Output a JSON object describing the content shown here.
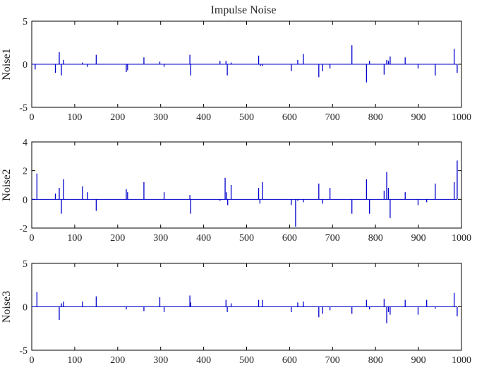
{
  "title": "Impulse Noise",
  "chart_data": [
    {
      "type": "line",
      "title": "Impulse Noise",
      "ylabel": "Noise1",
      "xlabel": "",
      "xlim": [
        0,
        1000
      ],
      "ylim": [
        -5,
        5
      ],
      "xticks": [
        0,
        100,
        200,
        300,
        400,
        500,
        600,
        700,
        800,
        900,
        1000
      ],
      "yticks": [
        -5,
        0,
        5
      ],
      "color": "#0000cc",
      "series": [
        {
          "x": [
            8,
            55,
            64,
            69,
            74,
            118,
            130,
            150,
            220,
            223,
            261,
            298,
            308,
            368,
            370,
            438,
            452,
            455,
            464,
            528,
            532,
            537,
            604,
            619,
            632,
            668,
            677,
            694,
            745,
            779,
            786,
            820,
            826,
            830,
            834,
            869,
            899,
            939,
            983,
            990
          ],
          "y": [
            -0.6,
            -1,
            1.4,
            -1.3,
            0.5,
            0.2,
            -0.3,
            1.1,
            -0.9,
            -0.7,
            0.8,
            0.3,
            -0.3,
            1.1,
            -1.3,
            0.4,
            0.4,
            -1.3,
            0.2,
            1,
            -0.2,
            -0.2,
            -0.8,
            0.5,
            1.2,
            -1.5,
            -0.8,
            -0.5,
            2.2,
            -2.1,
            0.4,
            -1.2,
            0.5,
            0.4,
            0.9,
            0.8,
            -0.5,
            -1.3,
            1.8,
            -1
          ]
        }
      ]
    },
    {
      "type": "line",
      "title": "",
      "ylabel": "Noise2",
      "xlabel": "",
      "xlim": [
        0,
        1000
      ],
      "ylim": [
        -2,
        4
      ],
      "xticks": [
        0,
        100,
        200,
        300,
        400,
        500,
        600,
        700,
        800,
        900,
        1000
      ],
      "yticks": [
        -2,
        0,
        2,
        4
      ],
      "color": "#0000cc",
      "series": [
        {
          "x": [
            12,
            55,
            64,
            69,
            74,
            118,
            130,
            150,
            220,
            223,
            261,
            308,
            368,
            370,
            438,
            450,
            453,
            456,
            464,
            528,
            531,
            537,
            604,
            614,
            619,
            632,
            668,
            677,
            694,
            745,
            779,
            786,
            820,
            826,
            830,
            834,
            869,
            899,
            919,
            939,
            983,
            990
          ],
          "y": [
            1.8,
            0.4,
            0.8,
            -1,
            1.4,
            0.9,
            0.5,
            -0.8,
            0.7,
            0.5,
            1.2,
            0.5,
            0.3,
            -1,
            -0.1,
            1.5,
            0.5,
            -0.4,
            1,
            0.8,
            -0.3,
            1.2,
            -0.4,
            -1.9,
            -0.1,
            -0.2,
            1.1,
            -0.3,
            0.8,
            -1,
            1.4,
            -1,
            0.6,
            1.9,
            0.8,
            -1.3,
            0.5,
            -0.4,
            -0.2,
            1.1,
            1.2,
            2.7
          ]
        }
      ]
    },
    {
      "type": "line",
      "title": "",
      "ylabel": "Noise3",
      "xlabel": "",
      "xlim": [
        0,
        1000
      ],
      "ylim": [
        -5,
        5
      ],
      "xticks": [
        0,
        100,
        200,
        300,
        400,
        500,
        600,
        700,
        800,
        900,
        1000
      ],
      "yticks": [
        -5,
        0,
        5
      ],
      "color": "#0000cc",
      "series": [
        {
          "x": [
            12,
            64,
            69,
            74,
            118,
            150,
            220,
            261,
            298,
            308,
            368,
            370,
            452,
            455,
            464,
            528,
            537,
            604,
            619,
            632,
            668,
            677,
            694,
            745,
            779,
            786,
            820,
            826,
            830,
            834,
            869,
            899,
            919,
            939,
            983,
            990
          ],
          "y": [
            1.7,
            -1.5,
            0.4,
            0.6,
            0.6,
            1.2,
            -0.3,
            -0.5,
            1.1,
            -0.6,
            1.3,
            0.5,
            0.8,
            -0.6,
            0.4,
            0.8,
            0.8,
            -0.6,
            0.5,
            0.6,
            -1.2,
            -0.8,
            -0.4,
            -0.8,
            0.8,
            -0.3,
            0.9,
            -1.9,
            -0.6,
            -0.9,
            0.8,
            -0.9,
            0.8,
            -0.2,
            1.6,
            -1.1
          ]
        }
      ]
    }
  ]
}
